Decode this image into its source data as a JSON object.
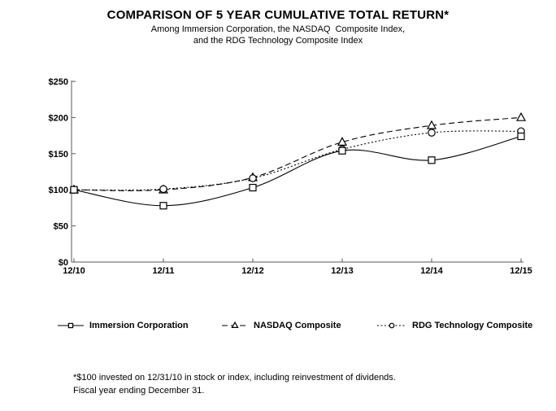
{
  "chart_data": {
    "type": "line",
    "title": "COMPARISON OF 5 YEAR CUMULATIVE TOTAL RETURN*",
    "subtitle1": "Among Immersion Corporation, the NASDAQ  Composite Index,",
    "subtitle2": "and the RDG Technology Composite Index",
    "x": [
      "12/10",
      "12/11",
      "12/12",
      "12/13",
      "12/14",
      "12/15"
    ],
    "y_tick_labels": [
      "$0",
      "$50",
      "$100",
      "$150",
      "$200",
      "$250"
    ],
    "ylim": [
      0,
      250
    ],
    "grid": false,
    "legend_position": "bottom",
    "axis_color": "#595959",
    "line_color": "#000000",
    "series": [
      {
        "name": "Immersion Corporation",
        "marker": "square",
        "line_style": "solid",
        "values": [
          100,
          78,
          103,
          154,
          141,
          174
        ]
      },
      {
        "name": "NASDAQ Composite",
        "marker": "triangle",
        "line_style": "dashed",
        "values": [
          100,
          100,
          117,
          166,
          189,
          200
        ]
      },
      {
        "name": "RDG Technology Composite",
        "marker": "circle",
        "line_style": "dotted",
        "values": [
          100,
          101,
          116,
          156,
          179,
          181
        ]
      }
    ],
    "footnote1": "*$100 invested on 12/31/10 in stock or index, including reinvestment of dividends.",
    "footnote2": "Fiscal year ending December 31."
  }
}
